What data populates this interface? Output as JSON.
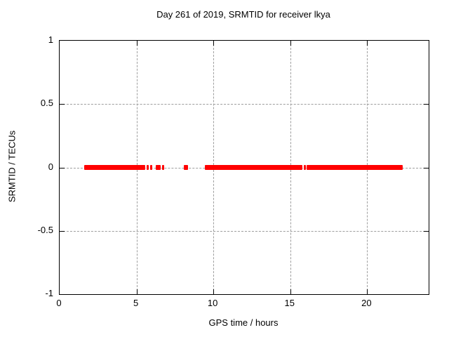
{
  "chart_data": {
    "type": "scatter",
    "title": "Day 261 of 2019, SRMTID for receiver lkya",
    "xlabel": "GPS time / hours",
    "ylabel": "SRMTID / TECUs",
    "xlim": [
      0,
      24
    ],
    "ylim": [
      -1,
      1
    ],
    "grid": true,
    "legend_position": "none",
    "marker": "filled-square",
    "marker_color": "#ff0000",
    "grid_color": "#9e9e9e",
    "frame_color": "#000000",
    "background_color": "#ffffff",
    "xticks": [
      {
        "value": 0,
        "label": "0"
      },
      {
        "value": 5,
        "label": "5"
      },
      {
        "value": 10,
        "label": "10"
      },
      {
        "value": 15,
        "label": "15"
      },
      {
        "value": 20,
        "label": "20"
      }
    ],
    "yticks": [
      {
        "value": 1,
        "label": "1"
      },
      {
        "value": 0.5,
        "label": "0.5"
      },
      {
        "value": 0,
        "label": "0"
      },
      {
        "value": -0.5,
        "label": "-0.5"
      },
      {
        "value": -1,
        "label": "-1"
      }
    ],
    "series": [
      {
        "name": "SRMTID",
        "y_value": 0,
        "segments_hours": [
          [
            1.6,
            5.57
          ],
          [
            5.66,
            5.8
          ],
          [
            5.89,
            5.98
          ],
          [
            6.26,
            6.58
          ],
          [
            6.67,
            6.76
          ],
          [
            8.08,
            8.36
          ],
          [
            9.45,
            15.8
          ],
          [
            15.89,
            15.98
          ],
          [
            16.07,
            22.33
          ]
        ]
      }
    ]
  }
}
